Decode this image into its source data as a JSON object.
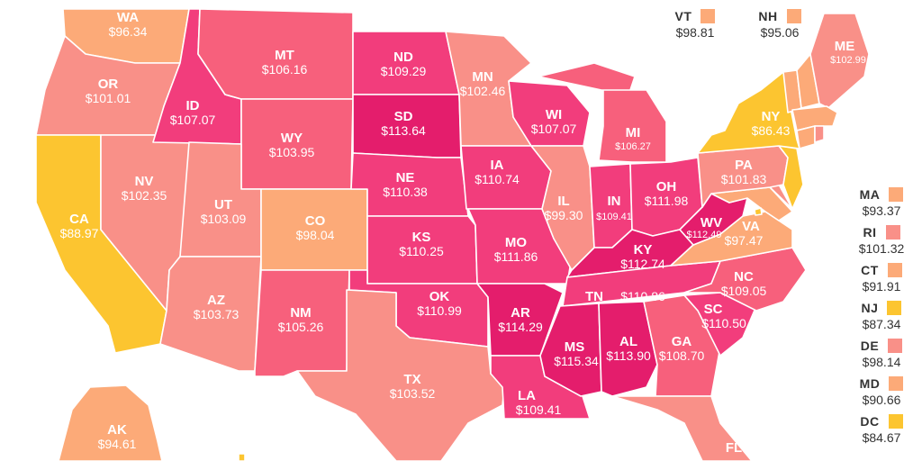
{
  "colors": {
    "yellow": "#fcc530",
    "orange": "#fcaa78",
    "salmon": "#f99088",
    "pink": "#f7607c",
    "hotpink": "#f23d7c",
    "magenta": "#e41d6c"
  },
  "states": {
    "WA": {
      "abbr": "WA",
      "value": "$96.34",
      "tier": "orange"
    },
    "OR": {
      "abbr": "OR",
      "value": "$101.01",
      "tier": "salmon"
    },
    "CA": {
      "abbr": "CA",
      "value": "$88.97",
      "tier": "yellow"
    },
    "NV": {
      "abbr": "NV",
      "value": "$102.35",
      "tier": "salmon"
    },
    "ID": {
      "abbr": "ID",
      "value": "$107.07",
      "tier": "hotpink"
    },
    "MT": {
      "abbr": "MT",
      "value": "$106.16",
      "tier": "pink"
    },
    "WY": {
      "abbr": "WY",
      "value": "$103.95",
      "tier": "pink"
    },
    "UT": {
      "abbr": "UT",
      "value": "$103.09",
      "tier": "salmon"
    },
    "AZ": {
      "abbr": "AZ",
      "value": "$103.73",
      "tier": "salmon"
    },
    "CO": {
      "abbr": "CO",
      "value": "$98.04",
      "tier": "orange"
    },
    "NM": {
      "abbr": "NM",
      "value": "$105.26",
      "tier": "pink"
    },
    "ND": {
      "abbr": "ND",
      "value": "$109.29",
      "tier": "hotpink"
    },
    "SD": {
      "abbr": "SD",
      "value": "$113.64",
      "tier": "magenta"
    },
    "NE": {
      "abbr": "NE",
      "value": "$110.38",
      "tier": "hotpink"
    },
    "KS": {
      "abbr": "KS",
      "value": "$110.25",
      "tier": "hotpink"
    },
    "OK": {
      "abbr": "OK",
      "value": "$110.99",
      "tier": "hotpink"
    },
    "TX": {
      "abbr": "TX",
      "value": "$103.52",
      "tier": "salmon"
    },
    "MN": {
      "abbr": "MN",
      "value": "$102.46",
      "tier": "salmon"
    },
    "IA": {
      "abbr": "IA",
      "value": "$110.74",
      "tier": "hotpink"
    },
    "MO": {
      "abbr": "MO",
      "value": "$111.86",
      "tier": "hotpink"
    },
    "AR": {
      "abbr": "AR",
      "value": "$114.29",
      "tier": "magenta"
    },
    "LA": {
      "abbr": "LA",
      "value": "$109.41",
      "tier": "hotpink"
    },
    "WI": {
      "abbr": "WI",
      "value": "$107.07",
      "tier": "hotpink"
    },
    "IL": {
      "abbr": "IL",
      "value": "$99.30",
      "tier": "salmon"
    },
    "MI": {
      "abbr": "MI",
      "value": "$106.27",
      "tier": "pink"
    },
    "IN": {
      "abbr": "IN",
      "value": "$109.41",
      "tier": "hotpink"
    },
    "OH": {
      "abbr": "OH",
      "value": "$111.98",
      "tier": "hotpink"
    },
    "KY": {
      "abbr": "KY",
      "value": "$112.74",
      "tier": "magenta"
    },
    "TN": {
      "abbr": "TN",
      "value": "$110.86",
      "tier": "hotpink"
    },
    "MS": {
      "abbr": "MS",
      "value": "$115.34",
      "tier": "magenta"
    },
    "AL": {
      "abbr": "AL",
      "value": "$113.90",
      "tier": "magenta"
    },
    "GA": {
      "abbr": "GA",
      "value": "$108.70",
      "tier": "pink"
    },
    "FL": {
      "abbr": "FL",
      "value": "",
      "tier": "salmon"
    },
    "SC": {
      "abbr": "SC",
      "value": "$110.50",
      "tier": "hotpink"
    },
    "NC": {
      "abbr": "NC",
      "value": "$109.05",
      "tier": "pink"
    },
    "VA": {
      "abbr": "VA",
      "value": "$97.47",
      "tier": "orange"
    },
    "WV": {
      "abbr": "WV",
      "value": "$112.49",
      "tier": "magenta"
    },
    "PA": {
      "abbr": "PA",
      "value": "$101.83",
      "tier": "salmon"
    },
    "NY": {
      "abbr": "NY",
      "value": "$86.43",
      "tier": "yellow"
    },
    "ME": {
      "abbr": "ME",
      "value": "$102.99",
      "tier": "salmon"
    },
    "AK": {
      "abbr": "AK",
      "value": "$94.61",
      "tier": "orange"
    },
    "VT": {
      "abbr": "VT",
      "value": "$98.81",
      "tier": "orange"
    },
    "NH": {
      "abbr": "NH",
      "value": "$95.06",
      "tier": "orange"
    },
    "MA": {
      "abbr": "MA",
      "value": "$93.37",
      "tier": "orange"
    },
    "RI": {
      "abbr": "RI",
      "value": "$101.32",
      "tier": "salmon"
    },
    "CT": {
      "abbr": "CT",
      "value": "$91.91",
      "tier": "orange"
    },
    "NJ": {
      "abbr": "NJ",
      "value": "$87.34",
      "tier": "yellow"
    },
    "DE": {
      "abbr": "DE",
      "value": "$98.14",
      "tier": "salmon"
    },
    "MD": {
      "abbr": "MD",
      "value": "$90.66",
      "tier": "orange"
    },
    "DC": {
      "abbr": "DC",
      "value": "$84.67",
      "tier": "yellow"
    }
  }
}
